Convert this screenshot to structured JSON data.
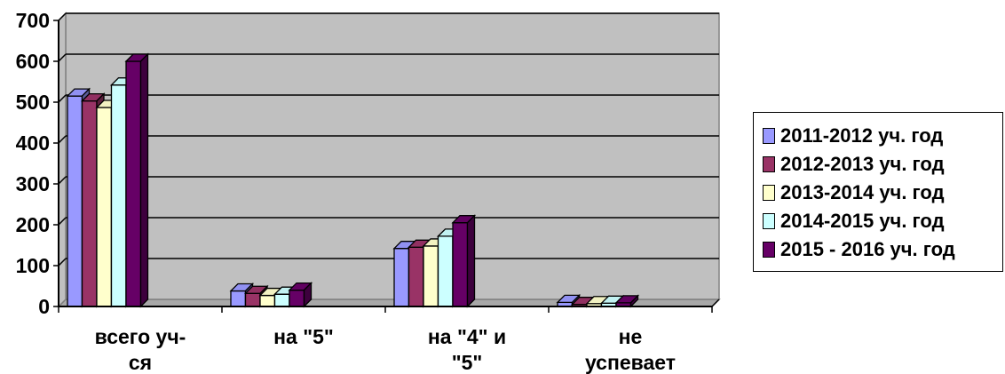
{
  "chart_data": {
    "type": "bar",
    "categories": [
      [
        "всего уч-",
        "ся"
      ],
      [
        "на \"5\""
      ],
      [
        "на \"4\" и",
        "\"5\""
      ],
      [
        "не",
        "успевает"
      ]
    ],
    "series": [
      {
        "name": "2011-2012 уч. год",
        "values": [
          515,
          38,
          142,
          10
        ],
        "color": "#9999FF"
      },
      {
        "name": "2012-2013 уч. год",
        "values": [
          503,
          32,
          145,
          5
        ],
        "color": "#993366"
      },
      {
        "name": "2013-2014 уч. год",
        "values": [
          487,
          27,
          148,
          7
        ],
        "color": "#FFFFCC"
      },
      {
        "name": "2014-2015 уч. год",
        "values": [
          542,
          30,
          172,
          8
        ],
        "color": "#CCFFFF"
      },
      {
        "name": "2015 - 2016 уч. год",
        "values": [
          600,
          40,
          205,
          9
        ],
        "color": "#660066"
      }
    ],
    "ylim": [
      0,
      700
    ],
    "yticks": [
      "0",
      "100",
      "200",
      "300",
      "400",
      "500",
      "600",
      "700"
    ],
    "grid": true,
    "legend_position": "right",
    "plot_background": "#C0C0C0"
  }
}
